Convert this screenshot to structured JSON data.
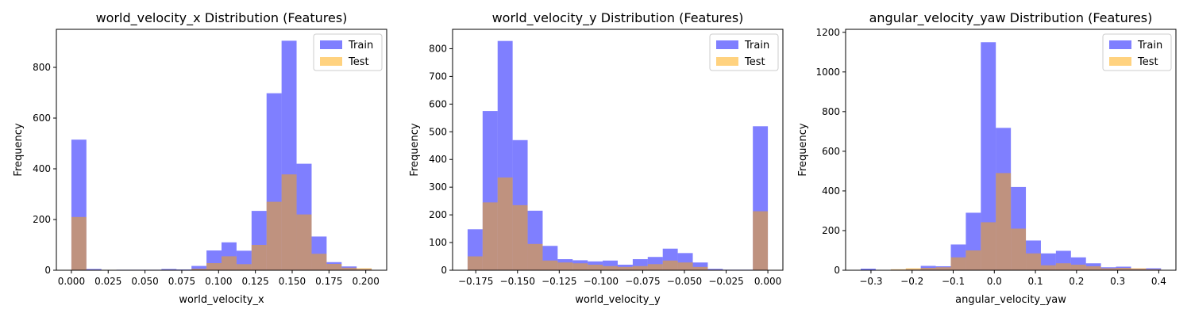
{
  "colors": {
    "train": "#0000ff",
    "test": "#ffa500",
    "train_alpha": 0.5,
    "test_alpha": 0.5
  },
  "chart_data": [
    {
      "type": "histogram",
      "title": "world_velocity_x Distribution (Features)",
      "xlabel": "world_velocity_x",
      "ylabel": "Frequency",
      "xlim": [
        -0.0102,
        0.2142
      ],
      "ylim": [
        0,
        950
      ],
      "xticks": [
        0.0,
        0.025,
        0.05,
        0.075,
        0.1,
        0.125,
        0.15,
        0.175,
        0.2
      ],
      "xtick_labels": [
        "0.000",
        "0.025",
        "0.050",
        "0.075",
        "0.100",
        "0.125",
        "0.150",
        "0.175",
        "0.200"
      ],
      "yticks": [
        0,
        200,
        400,
        600,
        800
      ],
      "ytick_labels": [
        "0",
        "200",
        "400",
        "600",
        "800"
      ],
      "legend": "top-right",
      "series": [
        {
          "name": "Train",
          "edges": [
            0.0,
            0.0102,
            0.0204,
            0.0306,
            0.0408,
            0.051,
            0.0612,
            0.0714,
            0.0816,
            0.0918,
            0.102,
            0.1122,
            0.1224,
            0.1326,
            0.1428,
            0.153,
            0.1632,
            0.1734,
            0.1836,
            0.1938,
            0.204
          ],
          "counts": [
            515,
            5,
            0,
            2,
            2,
            2,
            5,
            3,
            17,
            78,
            110,
            77,
            234,
            698,
            905,
            420,
            133,
            32,
            15,
            5
          ]
        },
        {
          "name": "Test",
          "edges": [
            0.0,
            0.0102,
            0.0204,
            0.0306,
            0.0408,
            0.051,
            0.0612,
            0.0714,
            0.0816,
            0.0918,
            0.102,
            0.1122,
            0.1224,
            0.1326,
            0.1428,
            0.153,
            0.1632,
            0.1734,
            0.1836,
            0.1938,
            0.204
          ],
          "counts": [
            210,
            2,
            0,
            0,
            1,
            1,
            2,
            1,
            6,
            28,
            55,
            24,
            100,
            270,
            378,
            220,
            65,
            25,
            10,
            8
          ]
        }
      ]
    },
    {
      "type": "histogram",
      "title": "world_velocity_y Distribution (Features)",
      "xlabel": "world_velocity_y",
      "ylabel": "Frequency",
      "xlim": [
        -0.1889,
        0.009
      ],
      "ylim": [
        0,
        870
      ],
      "xticks": [
        -0.175,
        -0.15,
        -0.125,
        -0.1,
        -0.075,
        -0.05,
        -0.025,
        0.0
      ],
      "xtick_labels": [
        "−0.175",
        "−0.150",
        "−0.125",
        "−0.100",
        "−0.075",
        "−0.050",
        "−0.025",
        "0.000"
      ],
      "yticks": [
        0,
        100,
        200,
        300,
        400,
        500,
        600,
        700,
        800
      ],
      "ytick_labels": [
        "0",
        "100",
        "200",
        "300",
        "400",
        "500",
        "600",
        "700",
        "800"
      ],
      "legend": "top-right",
      "series": [
        {
          "name": "Train",
          "edges": [
            -0.1799,
            -0.17091,
            -0.16191,
            -0.15292,
            -0.14392,
            -0.13493,
            -0.12594,
            -0.11694,
            -0.10795,
            -0.09895,
            -0.08996,
            -0.08096,
            -0.07197,
            -0.06297,
            -0.05398,
            -0.04498,
            -0.03599,
            -0.02699,
            -0.018,
            -0.009,
            0.0
          ],
          "counts": [
            148,
            575,
            828,
            470,
            215,
            88,
            40,
            36,
            32,
            35,
            20,
            40,
            48,
            78,
            62,
            28,
            5,
            2,
            2,
            520
          ]
        },
        {
          "name": "Test",
          "edges": [
            -0.1799,
            -0.17091,
            -0.16191,
            -0.15292,
            -0.14392,
            -0.13493,
            -0.12594,
            -0.11694,
            -0.10795,
            -0.09895,
            -0.08996,
            -0.08096,
            -0.07197,
            -0.06297,
            -0.05398,
            -0.04498,
            -0.03599,
            -0.02699,
            -0.018,
            -0.009,
            0.0
          ],
          "counts": [
            50,
            245,
            335,
            235,
            95,
            35,
            28,
            25,
            20,
            15,
            12,
            15,
            22,
            35,
            28,
            12,
            2,
            1,
            1,
            213
          ]
        }
      ]
    },
    {
      "type": "histogram",
      "title": "angular_velocity_yaw Distribution (Features)",
      "xlabel": "angular_velocity_yaw",
      "ylabel": "Frequency",
      "xlim": [
        -0.3617,
        0.4417
      ],
      "ylim": [
        0,
        1215
      ],
      "xticks": [
        -0.3,
        -0.2,
        -0.1,
        0.0,
        0.1,
        0.2,
        0.3,
        0.4
      ],
      "xtick_labels": [
        "−0.3",
        "−0.2",
        "−0.1",
        "0.0",
        "0.1",
        "0.2",
        "0.3",
        "0.4"
      ],
      "yticks": [
        0,
        200,
        400,
        600,
        800,
        1000,
        1200
      ],
      "ytick_labels": [
        "0",
        "200",
        "400",
        "600",
        "800",
        "1000",
        "1200"
      ],
      "legend": "top-right",
      "series": [
        {
          "name": "Train",
          "edges": [
            -0.325,
            -0.2885,
            -0.2519,
            -0.2154,
            -0.1789,
            -0.1424,
            -0.1058,
            -0.0693,
            -0.0328,
            0.0037,
            0.0403,
            0.0768,
            0.1133,
            0.1498,
            0.1864,
            0.2229,
            0.2594,
            0.2959,
            0.3325,
            0.369,
            0.4055
          ],
          "counts": [
            8,
            2,
            3,
            5,
            22,
            20,
            130,
            290,
            1150,
            718,
            420,
            150,
            85,
            98,
            65,
            35,
            15,
            18,
            8,
            10
          ]
        },
        {
          "name": "Test",
          "edges": [
            -0.325,
            -0.2885,
            -0.2519,
            -0.2154,
            -0.1789,
            -0.1424,
            -0.1058,
            -0.0693,
            -0.0328,
            0.0037,
            0.0403,
            0.0768,
            0.1133,
            0.1498,
            0.1864,
            0.2229,
            0.2594,
            0.2959,
            0.3325,
            0.369,
            0.4055
          ],
          "counts": [
            2,
            2,
            5,
            10,
            12,
            15,
            65,
            100,
            242,
            490,
            210,
            85,
            25,
            35,
            28,
            20,
            10,
            12,
            10,
            5
          ]
        }
      ]
    }
  ]
}
